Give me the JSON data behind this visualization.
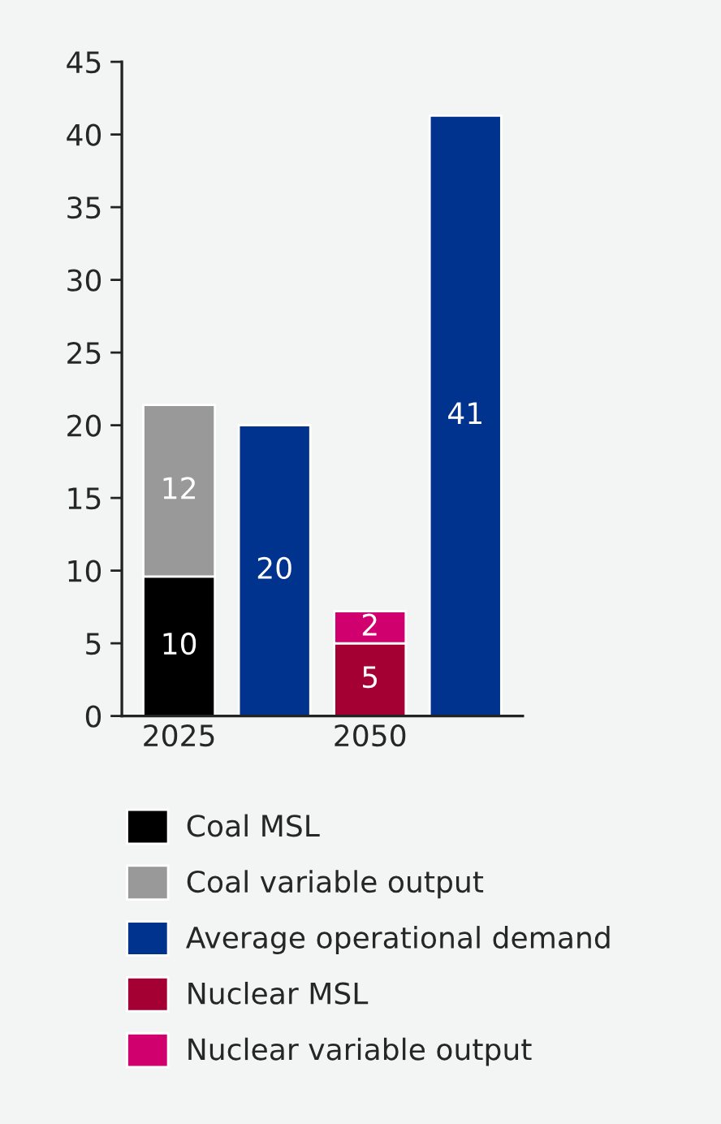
{
  "chart_data": {
    "type": "bar",
    "categories": [
      "2025",
      null,
      "2050",
      null
    ],
    "stacked": true,
    "series": [
      {
        "name": "Coal MSL",
        "color": "#000000",
        "values": [
          9.6,
          null,
          null,
          null
        ],
        "value_labels": [
          "10",
          null,
          null,
          null
        ]
      },
      {
        "name": "Coal variable output",
        "color": "#999999",
        "values": [
          11.8,
          null,
          null,
          null
        ],
        "value_labels": [
          "12",
          null,
          null,
          null
        ]
      },
      {
        "name": "Average operational demand",
        "color": "#00338d",
        "values": [
          null,
          20.0,
          null,
          41.3
        ],
        "value_labels": [
          null,
          "20",
          null,
          "41"
        ]
      },
      {
        "name": "Nuclear MSL",
        "color": "#a50034",
        "values": [
          null,
          null,
          5.0,
          null
        ],
        "value_labels": [
          null,
          null,
          "5",
          null
        ]
      },
      {
        "name": "Nuclear variable output",
        "color": "#d1006f",
        "values": [
          null,
          null,
          2.2,
          null
        ],
        "value_labels": [
          null,
          null,
          "2",
          null
        ]
      }
    ],
    "ylim": [
      0,
      45
    ],
    "yticks": [
      0,
      5,
      10,
      15,
      20,
      25,
      30,
      35,
      40,
      45
    ],
    "grid": false,
    "legend": "bottom"
  }
}
